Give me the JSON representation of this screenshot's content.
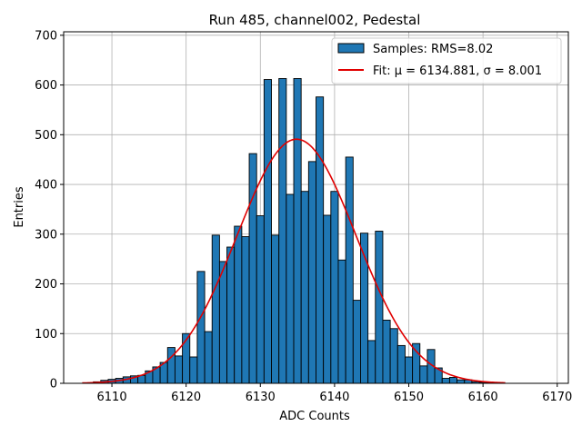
{
  "chart_data": {
    "type": "bar",
    "title": "Run 485, channel002, Pedestal",
    "xlabel": "ADC Counts",
    "ylabel": "Entries",
    "xlim": [
      6103.5,
      6171.5
    ],
    "ylim": [
      0,
      707
    ],
    "grid": true,
    "legend_position": "top-right",
    "x_ticks": [
      6110,
      6120,
      6130,
      6140,
      6150,
      6160,
      6170
    ],
    "y_ticks": [
      0,
      100,
      200,
      300,
      400,
      500,
      600,
      700
    ],
    "bin_width": 1,
    "bins": {
      "name": "Samples: RMS=8.02",
      "color": "#1f77b4",
      "x": [
        6107,
        6108,
        6109,
        6110,
        6111,
        6112,
        6113,
        6114,
        6115,
        6116,
        6117,
        6118,
        6119,
        6120,
        6121,
        6122,
        6123,
        6124,
        6125,
        6126,
        6127,
        6128,
        6129,
        6130,
        6131,
        6132,
        6133,
        6134,
        6135,
        6136,
        6137,
        6138,
        6139,
        6140,
        6141,
        6142,
        6143,
        6144,
        6145,
        6146,
        6147,
        6148,
        6149,
        6150,
        6151,
        6152,
        6153,
        6154,
        6155,
        6156,
        6157,
        6158,
        6159,
        6160,
        6161,
        6162
      ],
      "values": [
        1,
        3,
        6,
        8,
        10,
        13,
        15,
        16,
        25,
        33,
        42,
        72,
        55,
        100,
        53,
        225,
        104,
        298,
        245,
        274,
        316,
        295,
        462,
        337,
        611,
        298,
        613,
        380,
        613,
        386,
        446,
        576,
        338,
        386,
        248,
        455,
        167,
        302,
        86,
        306,
        127,
        110,
        76,
        53,
        80,
        35,
        68,
        31,
        10,
        12,
        7,
        7,
        3,
        2,
        1,
        1
      ]
    },
    "fit": {
      "name": "Fit: μ = 6134.881, σ = 8.001",
      "color": "#e00000",
      "mu": 6134.881,
      "sigma": 8.001,
      "amplitude": 491,
      "x_range": [
        6106,
        6163
      ]
    }
  }
}
